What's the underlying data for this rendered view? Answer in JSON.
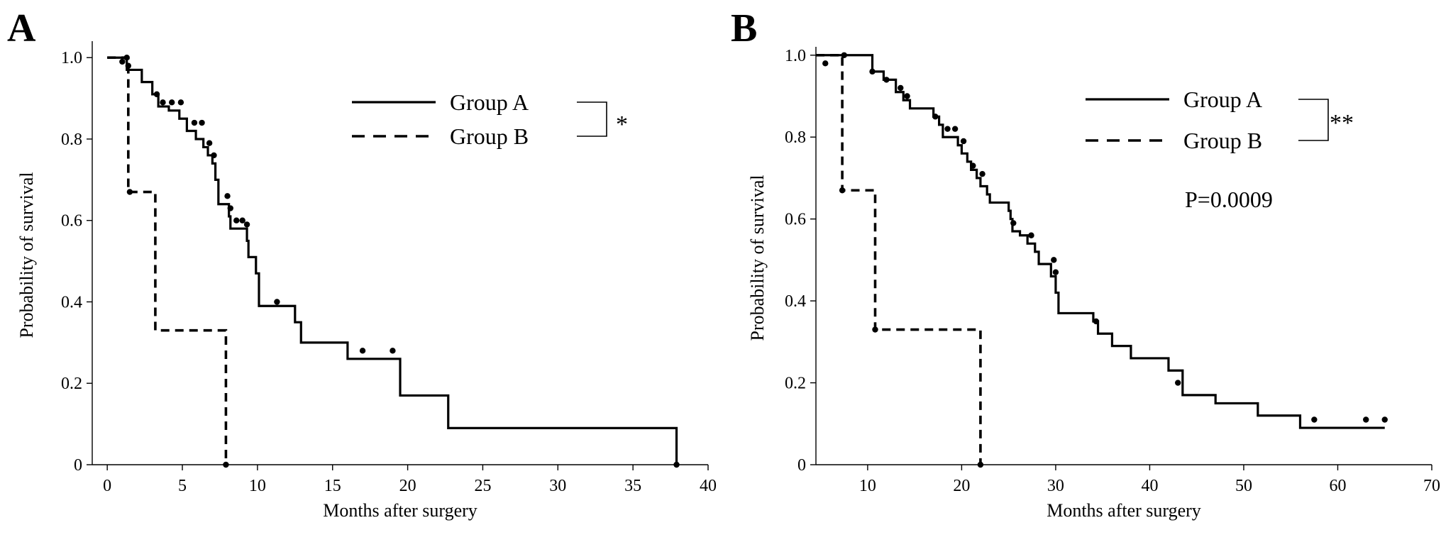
{
  "chart_data": [
    {
      "type": "line",
      "panel_label": "A",
      "xlabel": "Months after surgery",
      "ylabel": "Probability of survival",
      "xlim": [
        -1,
        40
      ],
      "ylim": [
        0,
        1.03
      ],
      "xticks": [
        0,
        5,
        10,
        15,
        20,
        25,
        30,
        35,
        40
      ],
      "yticks": [
        0,
        0.2,
        0.4,
        0.6,
        0.8,
        1.0
      ],
      "ytick_labels": [
        "0",
        "0.2",
        "0.4",
        "0.6",
        "0.8",
        "1.0"
      ],
      "grid": false,
      "legend_position": "top-right",
      "significance_marker": "*",
      "p_value": "",
      "series": [
        {
          "name": "Group A",
          "style": "solid",
          "steps": [
            [
              0.2,
              1.0
            ],
            [
              1.3,
              0.97
            ],
            [
              2.3,
              0.94
            ],
            [
              3.0,
              0.91
            ],
            [
              3.4,
              0.88
            ],
            [
              4.1,
              0.87
            ],
            [
              4.8,
              0.85
            ],
            [
              5.3,
              0.82
            ],
            [
              5.9,
              0.8
            ],
            [
              6.4,
              0.78
            ],
            [
              6.7,
              0.76
            ],
            [
              7.0,
              0.74
            ],
            [
              7.2,
              0.7
            ],
            [
              7.4,
              0.64
            ],
            [
              8.1,
              0.61
            ],
            [
              8.2,
              0.58
            ],
            [
              9.3,
              0.55
            ],
            [
              9.4,
              0.51
            ],
            [
              9.9,
              0.47
            ],
            [
              10.1,
              0.39
            ],
            [
              12.5,
              0.35
            ],
            [
              12.9,
              0.3
            ],
            [
              16.0,
              0.26
            ],
            [
              19.5,
              0.17
            ],
            [
              22.7,
              0.09
            ],
            [
              37.9,
              0.0
            ]
          ],
          "end_x": 37.9,
          "censored": [
            [
              1.0,
              0.99
            ],
            [
              1.4,
              0.98
            ],
            [
              3.3,
              0.91
            ],
            [
              3.7,
              0.89
            ],
            [
              4.3,
              0.89
            ],
            [
              4.9,
              0.89
            ],
            [
              5.8,
              0.84
            ],
            [
              6.3,
              0.84
            ],
            [
              6.8,
              0.79
            ],
            [
              7.1,
              0.76
            ],
            [
              8.0,
              0.66
            ],
            [
              8.2,
              0.63
            ],
            [
              8.6,
              0.6
            ],
            [
              9.0,
              0.6
            ],
            [
              9.3,
              0.59
            ],
            [
              11.3,
              0.4
            ],
            [
              17.0,
              0.28
            ],
            [
              19.0,
              0.28
            ],
            [
              37.9,
              0.0
            ]
          ]
        },
        {
          "name": "Group B",
          "style": "dashed",
          "steps": [
            [
              1.4,
              0.67
            ],
            [
              3.2,
              0.33
            ],
            [
              7.9,
              0.0
            ]
          ],
          "end_x": 7.9,
          "censored": [
            [
              1.3,
              1.0
            ],
            [
              1.5,
              0.67
            ],
            [
              7.9,
              0.0
            ]
          ]
        }
      ]
    },
    {
      "type": "line",
      "panel_label": "B",
      "xlabel": "Months after surgery",
      "ylabel": "Probability of survival",
      "xlim": [
        4.5,
        70
      ],
      "ylim": [
        0,
        1.01
      ],
      "xticks": [
        10,
        20,
        30,
        40,
        50,
        60,
        70
      ],
      "yticks": [
        0,
        0.2,
        0.4,
        0.6,
        0.8,
        1.0
      ],
      "ytick_labels": [
        "0",
        "0.2",
        "0.4",
        "0.6",
        "0.8",
        "1.0"
      ],
      "grid": false,
      "legend_position": "top-right",
      "significance_marker": "**",
      "p_value": "P=0.0009",
      "series": [
        {
          "name": "Group A",
          "style": "solid",
          "steps": [
            [
              10.5,
              0.96
            ],
            [
              11.7,
              0.94
            ],
            [
              13.0,
              0.91
            ],
            [
              13.8,
              0.89
            ],
            [
              14.5,
              0.87
            ],
            [
              17.0,
              0.85
            ],
            [
              17.6,
              0.83
            ],
            [
              18.0,
              0.8
            ],
            [
              19.6,
              0.78
            ],
            [
              20.0,
              0.76
            ],
            [
              20.6,
              0.74
            ],
            [
              21.0,
              0.72
            ],
            [
              21.6,
              0.7
            ],
            [
              22.0,
              0.68
            ],
            [
              22.7,
              0.66
            ],
            [
              23.0,
              0.64
            ],
            [
              25.0,
              0.62
            ],
            [
              25.2,
              0.6
            ],
            [
              25.4,
              0.57
            ],
            [
              26.2,
              0.56
            ],
            [
              27.0,
              0.54
            ],
            [
              27.8,
              0.52
            ],
            [
              28.2,
              0.49
            ],
            [
              29.5,
              0.46
            ],
            [
              30.0,
              0.42
            ],
            [
              30.3,
              0.37
            ],
            [
              34.0,
              0.35
            ],
            [
              34.5,
              0.32
            ],
            [
              36.0,
              0.29
            ],
            [
              38.0,
              0.26
            ],
            [
              42.0,
              0.23
            ],
            [
              43.5,
              0.17
            ],
            [
              47.0,
              0.15
            ],
            [
              51.5,
              0.12
            ],
            [
              56.0,
              0.09
            ]
          ],
          "end_x": 65.0,
          "censored": [
            [
              5.5,
              0.98
            ],
            [
              10.5,
              0.96
            ],
            [
              12.0,
              0.94
            ],
            [
              13.5,
              0.92
            ],
            [
              14.2,
              0.9
            ],
            [
              17.2,
              0.85
            ],
            [
              18.5,
              0.82
            ],
            [
              19.3,
              0.82
            ],
            [
              20.2,
              0.79
            ],
            [
              21.2,
              0.73
            ],
            [
              22.2,
              0.71
            ],
            [
              25.5,
              0.59
            ],
            [
              27.4,
              0.56
            ],
            [
              29.8,
              0.5
            ],
            [
              30.0,
              0.47
            ],
            [
              34.3,
              0.35
            ],
            [
              43.0,
              0.2
            ],
            [
              57.5,
              0.11
            ],
            [
              63.0,
              0.11
            ],
            [
              65.0,
              0.11
            ]
          ]
        },
        {
          "name": "Group B",
          "style": "dashed",
          "steps": [
            [
              7.3,
              0.67
            ],
            [
              10.8,
              0.33
            ],
            [
              22.0,
              0.0
            ]
          ],
          "end_x": 22.0,
          "censored": [
            [
              7.5,
              1.0
            ],
            [
              7.3,
              0.67
            ],
            [
              10.8,
              0.33
            ],
            [
              22.0,
              0.0
            ]
          ]
        }
      ]
    }
  ]
}
